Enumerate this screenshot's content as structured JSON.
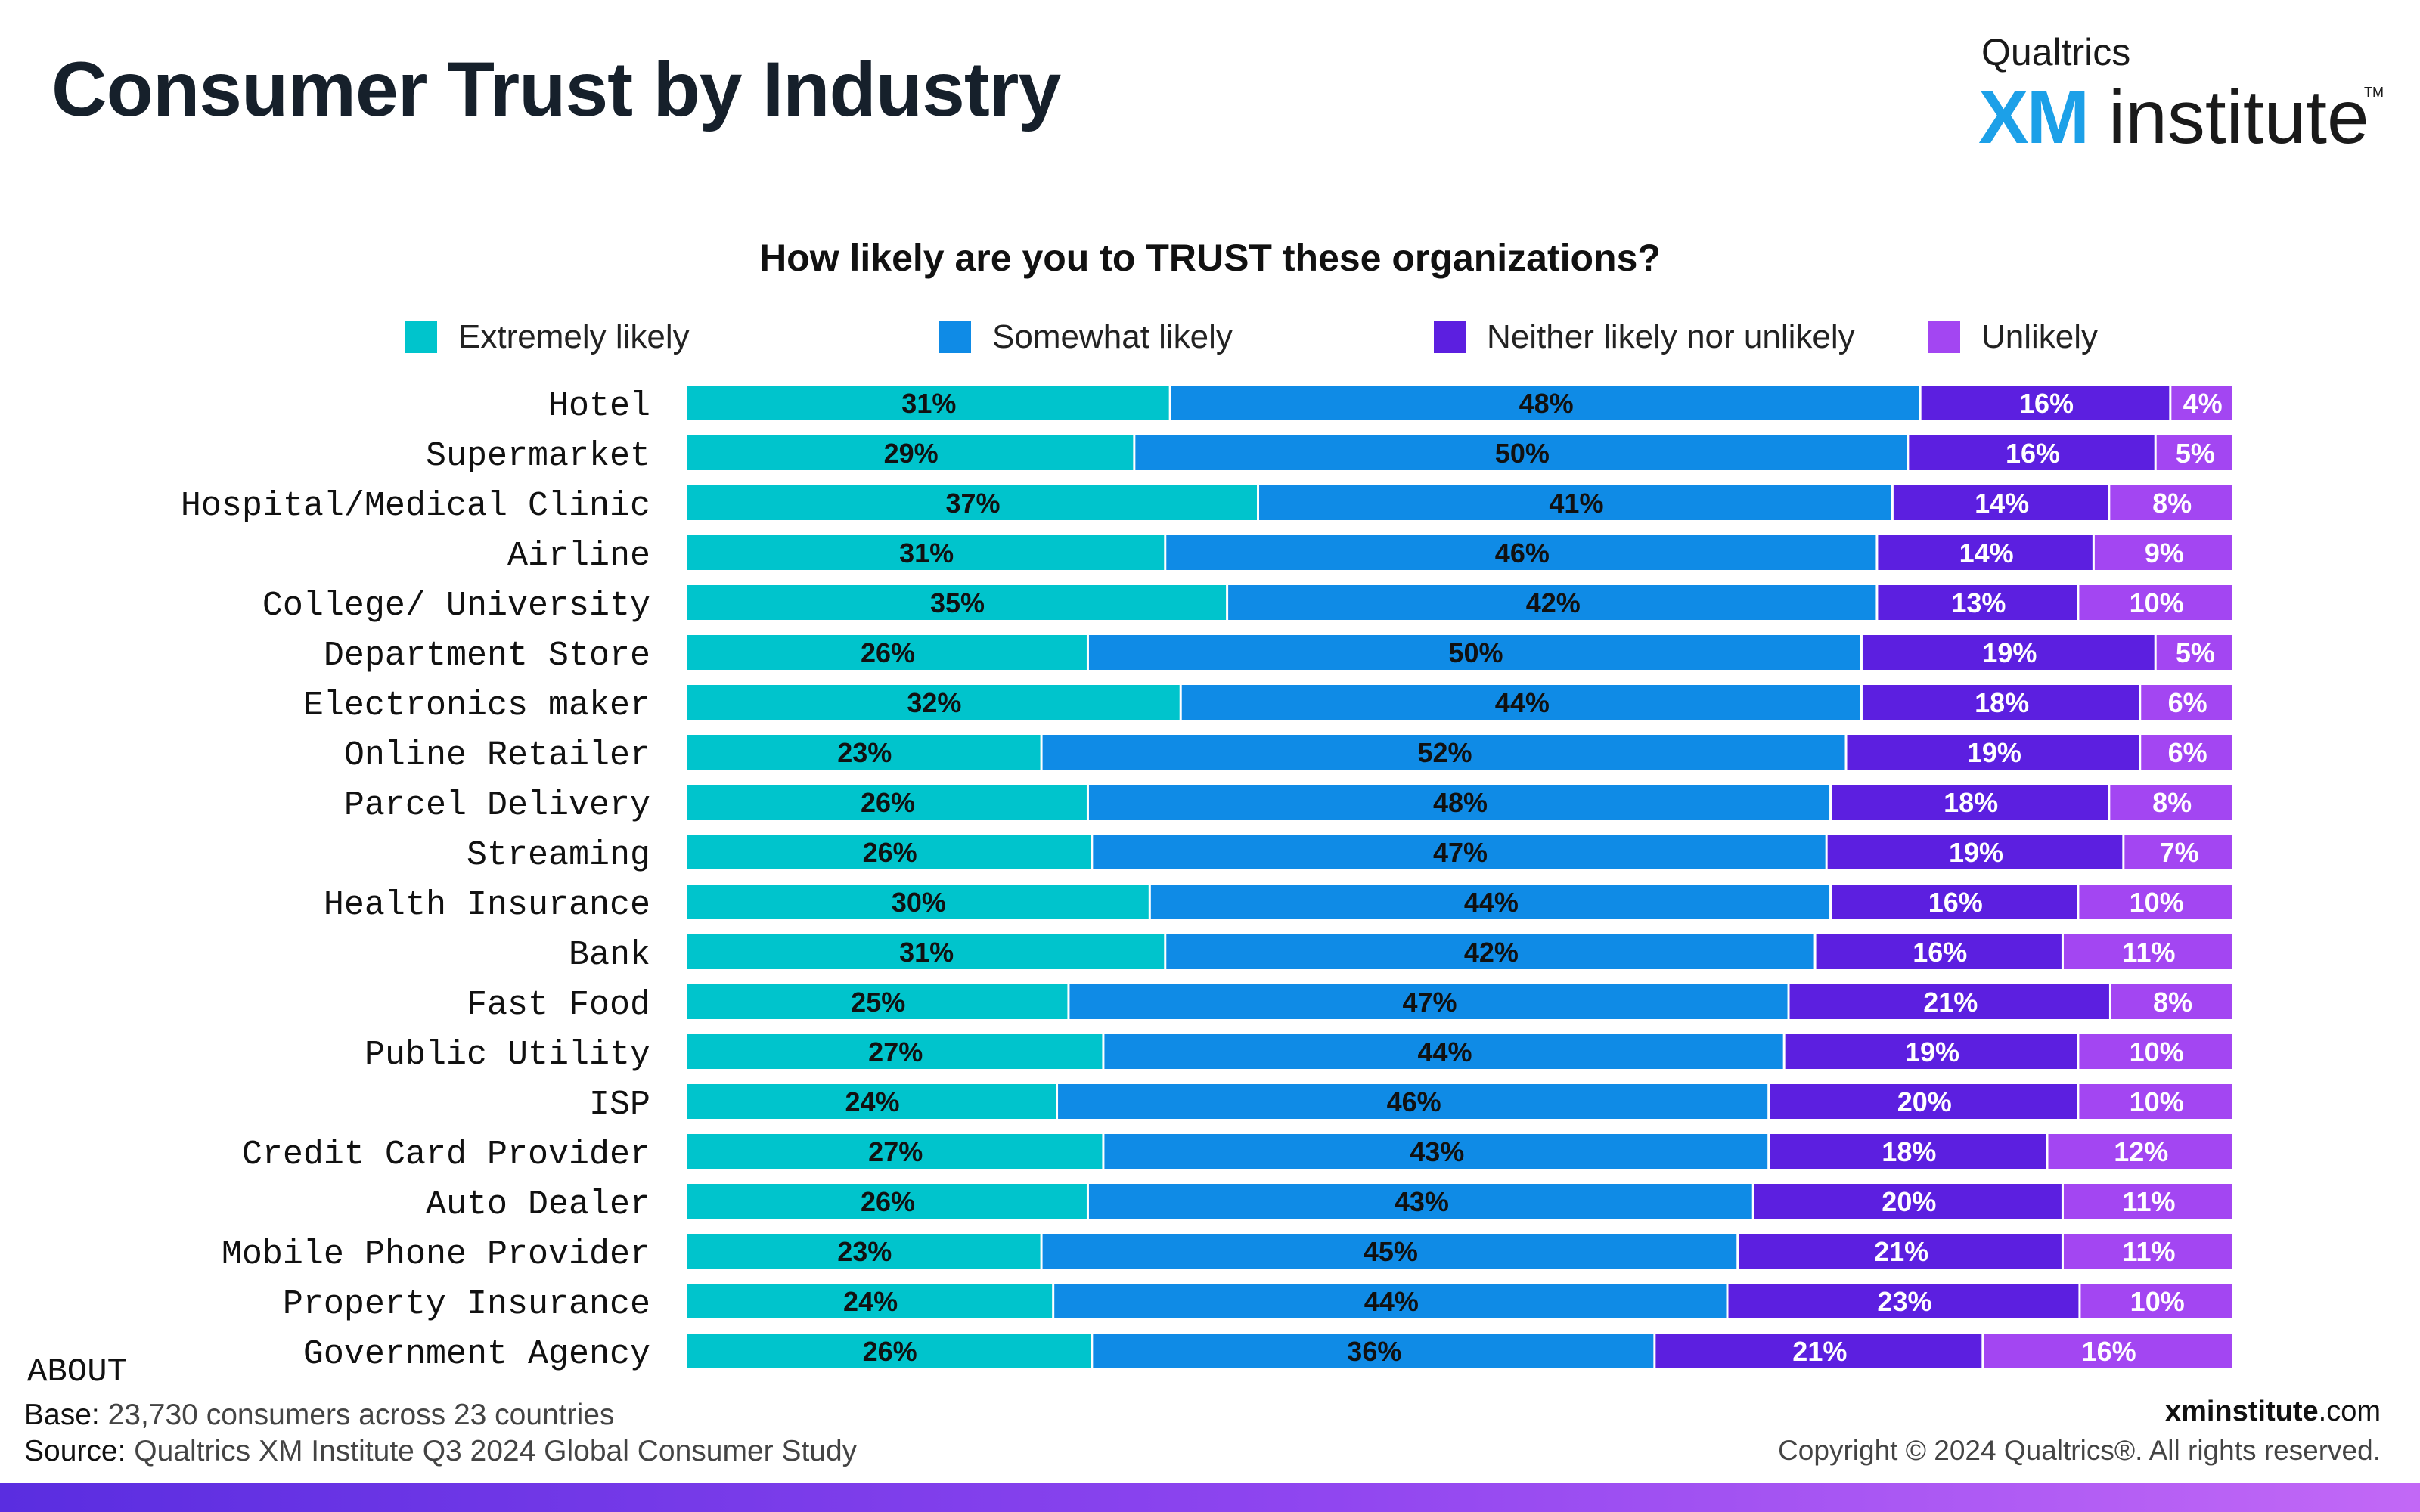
{
  "page": {
    "title": "Consumer Trust by Industry"
  },
  "logo": {
    "line1": "Qualtrics",
    "xm": "XM",
    "word": "institute",
    "tm": "TM"
  },
  "chart_data": {
    "type": "bar",
    "orientation": "horizontal",
    "stacked": true,
    "title": "How likely are you to TRUST these organizations?",
    "xlabel": "",
    "ylabel": "",
    "legend_position": "top",
    "categories": [
      "Hotel",
      "Supermarket",
      "Hospital/Medical Clinic",
      "Airline",
      "College/ University",
      "Department Store",
      "Electronics maker",
      "Online Retailer",
      "Parcel Delivery",
      "Streaming",
      "Health Insurance",
      "Bank",
      "Fast Food",
      "Public Utility",
      "ISP",
      "Credit Card Provider",
      "Auto Dealer",
      "Mobile Phone Provider",
      "Property Insurance",
      "Government Agency"
    ],
    "series": [
      {
        "name": "Extremely likely",
        "color": "#00c4cc",
        "text_color": "#111111",
        "values": [
          31,
          29,
          37,
          31,
          35,
          26,
          32,
          23,
          26,
          26,
          30,
          31,
          25,
          27,
          24,
          27,
          26,
          23,
          24,
          26
        ]
      },
      {
        "name": "Somewhat likely",
        "color": "#0f8be6",
        "text_color": "#111111",
        "values": [
          48,
          50,
          41,
          46,
          42,
          50,
          44,
          52,
          48,
          47,
          44,
          42,
          47,
          44,
          46,
          43,
          43,
          45,
          44,
          36
        ]
      },
      {
        "name": "Neither likely nor unlikely",
        "color": "#5c1fe0",
        "text_color": "#ffffff",
        "values": [
          16,
          16,
          14,
          14,
          13,
          19,
          18,
          19,
          18,
          19,
          16,
          16,
          21,
          19,
          20,
          18,
          20,
          21,
          23,
          21
        ]
      },
      {
        "name": "Unlikely",
        "color": "#a346f2",
        "text_color": "#ffffff",
        "values": [
          4,
          5,
          8,
          9,
          10,
          5,
          6,
          6,
          8,
          7,
          10,
          11,
          8,
          10,
          10,
          12,
          11,
          11,
          10,
          16
        ]
      }
    ],
    "value_suffix": "%"
  },
  "footer": {
    "about": "ABOUT",
    "base_key": "Base:",
    "base_val": " 23,730 consumers across 23 countries",
    "source_key": "Source:",
    "source_val": " Qualtrics XM Institute Q3 2024 Global Consumer Study",
    "site_bold": "xminstitute",
    "site_rest": ".com",
    "copyright": "Copyright © 2024 Qualtrics®. All rights reserved."
  }
}
